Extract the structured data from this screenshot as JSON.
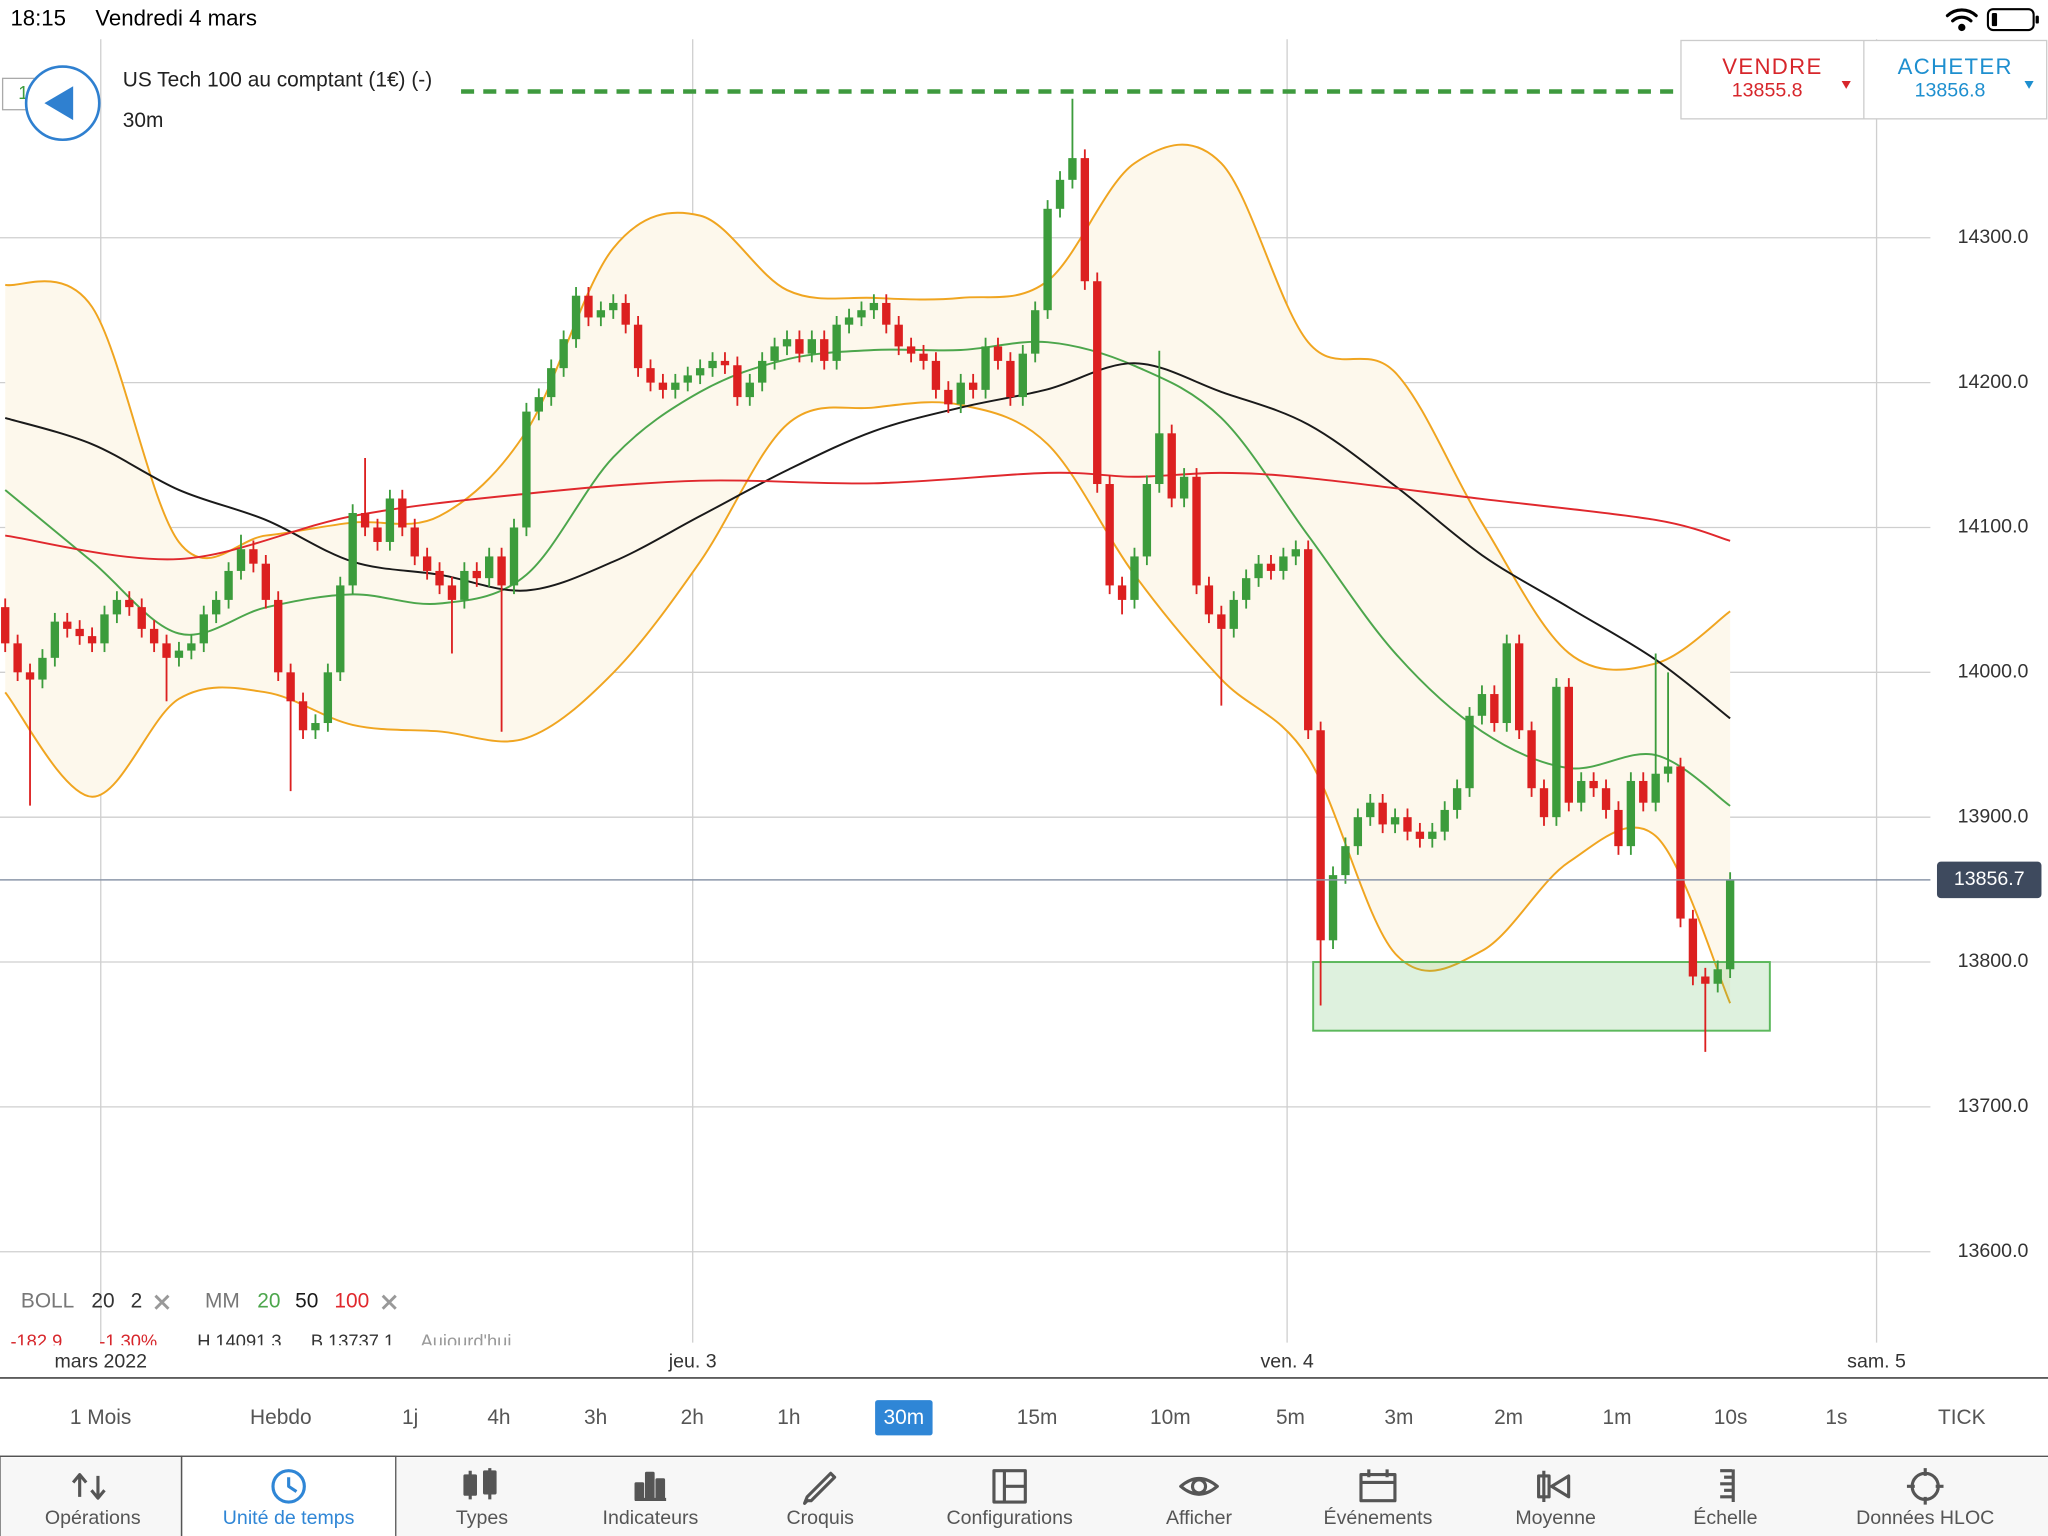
{
  "status_bar": {
    "time": "18:15",
    "date": "Vendredi 4 mars"
  },
  "instrument": {
    "badge": "1",
    "name": "US Tech 100 au comptant (1€) (-)",
    "timeframe": "30m"
  },
  "quote": {
    "sell_label": "VENDRE",
    "sell_price": "13855.8",
    "buy_label": "ACHETER",
    "buy_price": "13856.8"
  },
  "chart_data": {
    "type": "candlestick",
    "up_color": "#3c9c3c",
    "down_color": "#dc2020",
    "xlim": [
      -0.42,
      154.3
    ],
    "xticks": [
      {
        "value": 7.7,
        "label": "mars 2022"
      },
      {
        "value": 55.4,
        "label": "jeu. 3"
      },
      {
        "value": 103.3,
        "label": "ven. 4"
      },
      {
        "value": 150.8,
        "label": "sam. 5"
      }
    ],
    "ylim": [
      13537.2,
      14437.1
    ],
    "yticks": [
      {
        "value": 13600,
        "label": "13600.0"
      },
      {
        "value": 13700,
        "label": "13700.0"
      },
      {
        "value": 13800,
        "label": "13800.0"
      },
      {
        "value": 13900,
        "label": "13900.0"
      },
      {
        "value": 14000,
        "label": "14000.0"
      },
      {
        "value": 14100,
        "label": "14100.0"
      },
      {
        "value": 14200,
        "label": "14200.0"
      },
      {
        "value": 14300,
        "label": "14300.0"
      }
    ],
    "grid": true,
    "open": [
      14045,
      14020,
      14000,
      13995,
      14010,
      14035,
      14030,
      14025,
      14020,
      14040,
      14050,
      14045,
      14030,
      14020,
      14010,
      14015,
      14020,
      14040,
      14050,
      14070,
      14085,
      14075,
      14050,
      14000,
      13980,
      13960,
      13965,
      14000,
      14060,
      14110,
      14100,
      14090,
      14120,
      14100,
      14080,
      14070,
      14060,
      14050,
      14070,
      14065,
      14080,
      14060,
      14100,
      14180,
      14190,
      14210,
      14230,
      14260,
      14245,
      14250,
      14255,
      14240,
      14210,
      14200,
      14195,
      14200,
      14205,
      14210,
      14215,
      14212,
      14190,
      14200,
      14215,
      14225,
      14230,
      14220,
      14230,
      14215,
      14240,
      14245,
      14250,
      14255,
      14240,
      14225,
      14220,
      14215,
      14195,
      14185,
      14200,
      14195,
      14225,
      14215,
      14190,
      14220,
      14250,
      14320,
      14340,
      14355,
      14270,
      14130,
      14060,
      14050,
      14080,
      14130,
      14165,
      14120,
      14135,
      14060,
      14040,
      14030,
      14050,
      14065,
      14075,
      14070,
      14080,
      14085,
      13960,
      13815,
      13860,
      13880,
      13900,
      13910,
      13895,
      13900,
      13890,
      13885,
      13890,
      13905,
      13920,
      13970,
      13985,
      13965,
      14020,
      13960,
      13920,
      13900,
      13990,
      13910,
      13925,
      13920,
      13905,
      13880,
      13925,
      13910,
      13930,
      13935,
      13830,
      13790,
      13785,
      13795
    ],
    "high": [
      14051,
      14026,
      14006,
      14016,
      14041,
      14041,
      14036,
      14031,
      14046,
      14056,
      14056,
      14051,
      14036,
      14026,
      14021,
      14026,
      14046,
      14056,
      14076,
      14095,
      14091,
      14081,
      14056,
      14006,
      13986,
      13971,
      14006,
      14066,
      14116,
      14148,
      14106,
      14126,
      14126,
      14106,
      14086,
      14076,
      14066,
      14076,
      14076,
      14086,
      14086,
      14106,
      14186,
      14196,
      14216,
      14236,
      14266,
      14266,
      14256,
      14261,
      14261,
      14246,
      14216,
      14206,
      14206,
      14211,
      14216,
      14221,
      14221,
      14218,
      14206,
      14221,
      14231,
      14236,
      14236,
      14236,
      14236,
      14246,
      14251,
      14256,
      14261,
      14261,
      14246,
      14231,
      14226,
      14221,
      14201,
      14206,
      14206,
      14231,
      14231,
      14221,
      14226,
      14256,
      14326,
      14346,
      14396,
      14361,
      14276,
      14136,
      14066,
      14086,
      14136,
      14222,
      14171,
      14141,
      14141,
      14066,
      14046,
      14056,
      14071,
      14081,
      14081,
      14086,
      14091,
      14091,
      13966,
      13866,
      13886,
      13906,
      13916,
      13916,
      13906,
      13906,
      13896,
      13896,
      13911,
      13926,
      13976,
      13991,
      13991,
      14026,
      14026,
      13966,
      13926,
      13996,
      13996,
      13931,
      13931,
      13926,
      13911,
      13931,
      13931,
      14013,
      14000,
      13941,
      13836,
      13796,
      13801,
      13862
    ],
    "low": [
      14014,
      13994,
      13908,
      13989,
      14004,
      14024,
      14019,
      14014,
      14014,
      14034,
      14039,
      14024,
      14014,
      13980,
      14004,
      14009,
      14014,
      14034,
      14044,
      14064,
      14069,
      14044,
      13994,
      13918,
      13954,
      13954,
      13959,
      13994,
      14054,
      14094,
      14084,
      14084,
      14094,
      14074,
      14064,
      14054,
      14013,
      14044,
      14059,
      14059,
      13959,
      14054,
      14094,
      14174,
      14184,
      14204,
      14224,
      14239,
      14239,
      14244,
      14234,
      14204,
      14194,
      14189,
      14189,
      14194,
      14199,
      14204,
      14206,
      14184,
      14184,
      14194,
      14209,
      14219,
      14214,
      14214,
      14209,
      14209,
      14234,
      14239,
      14244,
      14234,
      14219,
      14214,
      14209,
      14189,
      14179,
      14179,
      14189,
      14189,
      14209,
      14184,
      14184,
      14214,
      14244,
      14314,
      14334,
      14264,
      14124,
      14054,
      14040,
      14044,
      14074,
      14124,
      14114,
      14114,
      14054,
      14034,
      13977,
      14024,
      14044,
      14059,
      14064,
      14064,
      14074,
      13954,
      13770,
      13809,
      13854,
      13874,
      13894,
      13889,
      13889,
      13884,
      13879,
      13879,
      13884,
      13899,
      13914,
      13964,
      13959,
      13959,
      13954,
      13914,
      13894,
      13894,
      13904,
      13904,
      13914,
      13899,
      13874,
      13874,
      13904,
      13904,
      13924,
      13824,
      13784,
      13738,
      13779,
      13789
    ],
    "close": [
      14020,
      14000,
      13995,
      14010,
      14035,
      14030,
      14025,
      14020,
      14040,
      14050,
      14045,
      14030,
      14020,
      14010,
      14015,
      14020,
      14040,
      14050,
      14070,
      14085,
      14075,
      14050,
      14000,
      13980,
      13960,
      13965,
      14000,
      14060,
      14110,
      14100,
      14090,
      14120,
      14100,
      14080,
      14070,
      14060,
      14050,
      14070,
      14065,
      14080,
      14060,
      14100,
      14180,
      14190,
      14210,
      14230,
      14260,
      14245,
      14250,
      14255,
      14240,
      14210,
      14200,
      14195,
      14200,
      14205,
      14210,
      14215,
      14212,
      14190,
      14200,
      14215,
      14225,
      14230,
      14220,
      14230,
      14215,
      14240,
      14245,
      14250,
      14255,
      14240,
      14225,
      14220,
      14215,
      14195,
      14185,
      14200,
      14195,
      14225,
      14215,
      14190,
      14220,
      14250,
      14320,
      14340,
      14355,
      14270,
      14130,
      14060,
      14050,
      14080,
      14130,
      14165,
      14120,
      14135,
      14060,
      14040,
      14030,
      14050,
      14065,
      14075,
      14070,
      14080,
      14085,
      13960,
      13815,
      13860,
      13880,
      13900,
      13910,
      13895,
      13900,
      13890,
      13885,
      13890,
      13905,
      13920,
      13970,
      13985,
      13965,
      14020,
      13960,
      13920,
      13900,
      13990,
      13910,
      13925,
      13920,
      13905,
      13880,
      13925,
      13910,
      13930,
      13935,
      13830,
      13790,
      13785,
      13795,
      13856.7
    ],
    "bollinger": {
      "name": "BOLL",
      "params": [
        "20",
        "2"
      ],
      "color": "#f0a520",
      "fill": "#fdf8ec",
      "x": [
        0,
        7,
        14,
        21,
        28,
        35,
        42,
        49,
        56,
        63,
        70,
        77,
        84,
        91,
        98,
        105,
        112,
        119,
        126,
        133,
        139
      ],
      "upper": [
        14267.5,
        14252.2,
        14089.9,
        14094.4,
        14103.4,
        14107.9,
        14166.5,
        14292.8,
        14315.3,
        14263.9,
        14258.5,
        14258.5,
        14270.2,
        14351.4,
        14351.4,
        14227.9,
        14207.1,
        14103.4,
        14013.3,
        14006.1,
        14042.1
      ],
      "lower": [
        13986.2,
        13914.1,
        13981.7,
        13986.2,
        13963.7,
        13959.2,
        13954.6,
        13999.7,
        14076.4,
        14171.1,
        14182.8,
        14184.6,
        14157.5,
        14067.4,
        13995.2,
        13941.1,
        13805.9,
        13807.7,
        13869.0,
        13887.0,
        13771.6
      ]
    },
    "moving_averages": {
      "name": "MM",
      "series": [
        {
          "name": "20",
          "color": "#4ca64c",
          "x": [
            0,
            7,
            14,
            21,
            28,
            35,
            42,
            49,
            56,
            63,
            70,
            77,
            84,
            91,
            98,
            105,
            112,
            119,
            126,
            133,
            139
          ],
          "values": [
            14125.9,
            14076.4,
            14026.8,
            14044.8,
            14053.8,
            14047.5,
            14067.4,
            14148.5,
            14193.6,
            14216.1,
            14222.5,
            14222.5,
            14227.9,
            14211.6,
            14175.6,
            14094.4,
            14013.3,
            13959.2,
            13933.9,
            13942.9,
            13907.8
          ]
        },
        {
          "name": "50",
          "color": "#1a1a1a",
          "x": [
            0,
            7,
            14,
            21,
            28,
            35,
            42,
            49,
            56,
            63,
            70,
            77,
            84,
            91,
            98,
            105,
            112,
            119,
            126,
            133,
            139
          ],
          "values": [
            14175.6,
            14157.5,
            14125.9,
            14105.2,
            14076.4,
            14067.4,
            14056.5,
            14076.4,
            14107.9,
            14139.5,
            14166.5,
            14182.8,
            14195.4,
            14213.4,
            14193.6,
            14171.1,
            14128.7,
            14080.9,
            14044.8,
            14008.7,
            13968.2
          ]
        },
        {
          "name": "100",
          "color": "#e0282d",
          "x": [
            0,
            14,
            28,
            42,
            56,
            70,
            84,
            91,
            98,
            105,
            119,
            133,
            139
          ],
          "values": [
            14094.4,
            14078.2,
            14107.9,
            14123.3,
            14132.3,
            14130.5,
            14137.7,
            14135.0,
            14137.7,
            14134.1,
            14119.7,
            14105.2,
            14090.8
          ]
        }
      ]
    },
    "current_price": 13856.7,
    "order_level": 14401,
    "zone": {
      "x": [
        105.4,
        142.2
      ],
      "y": [
        13752.6,
        13800
      ]
    }
  },
  "stats": {
    "change": "-182.9",
    "change_pct": "-1.30%",
    "high": "H 14091.3",
    "low": "B 13737.1",
    "period": "Aujourd'hui"
  },
  "timeframes": {
    "items": [
      "1 Mois",
      "Hebdo",
      "1j",
      "4h",
      "3h",
      "2h",
      "1h",
      "30m",
      "15m",
      "10m",
      "5m",
      "3m",
      "2m",
      "1m",
      "10s",
      "1s",
      "TICK"
    ],
    "selected": 7
  },
  "toolbar": {
    "items": [
      "Opérations",
      "Unité de temps",
      "Types",
      "Indicateurs",
      "Croquis",
      "Configurations",
      "Afficher",
      "Événements",
      "Moyenne",
      "Échelle",
      "Données HLOC"
    ],
    "active": 1
  }
}
